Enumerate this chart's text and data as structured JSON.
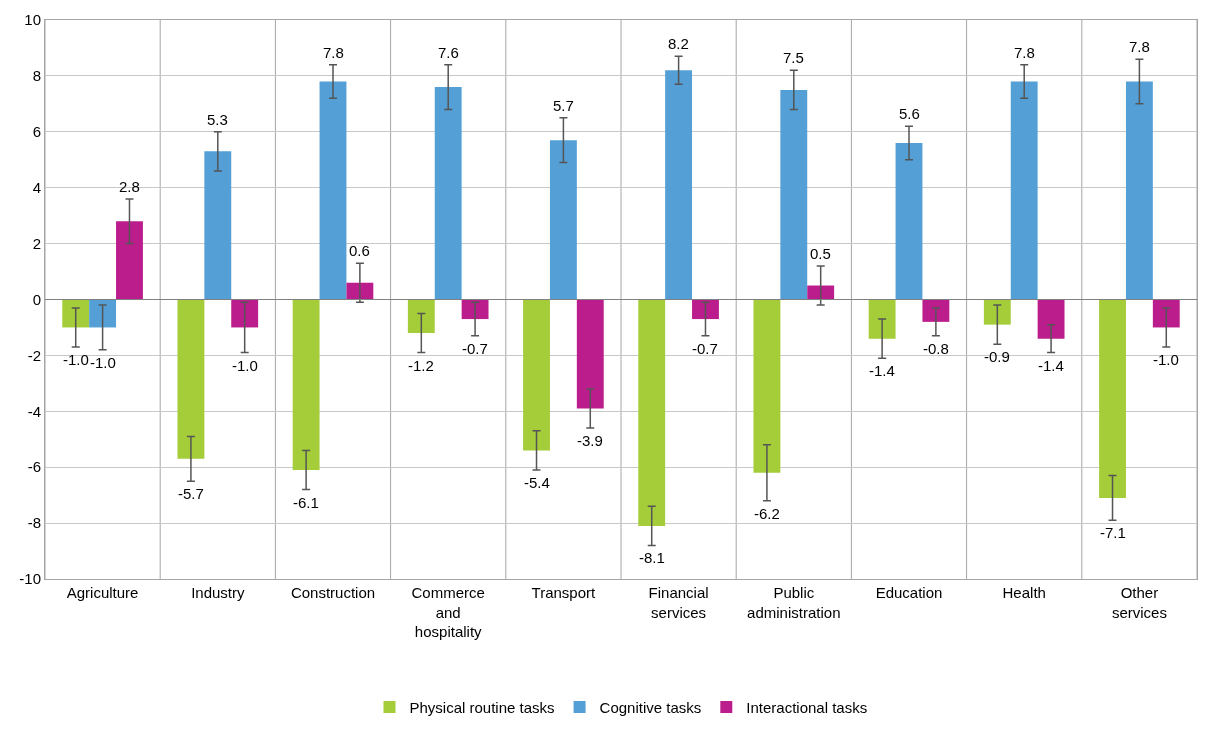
{
  "chart_data": {
    "type": "bar",
    "categories": [
      "Agriculture",
      "Industry",
      "Construction",
      "Commerce and hospitality",
      "Transport",
      "Financial services",
      "Public administration",
      "Education",
      "Health",
      "Other services"
    ],
    "series": [
      {
        "name": "Physical routine tasks",
        "color": "#a5cd39",
        "values": [
          -1.0,
          -5.7,
          -6.1,
          -1.2,
          -5.4,
          -8.1,
          -6.2,
          -1.4,
          -0.9,
          -7.1
        ],
        "value_labels": [
          "-1.0",
          "-5.7",
          "-6.1",
          "-1.2",
          "-5.4",
          "-8.1",
          "-6.2",
          "-1.4",
          "-0.9",
          "-7.1"
        ],
        "errors": [
          0.7,
          0.8,
          0.7,
          0.7,
          0.7,
          0.7,
          1.0,
          0.7,
          0.7,
          0.8
        ]
      },
      {
        "name": "Cognitive tasks",
        "color": "#539fd6",
        "values": [
          -1.0,
          5.3,
          7.8,
          7.6,
          5.7,
          8.2,
          7.5,
          5.6,
          7.8,
          7.8
        ],
        "value_labels": [
          "-1.0",
          "5.3",
          "7.8",
          "7.6",
          "5.7",
          "8.2",
          "7.5",
          "5.6",
          "7.8",
          "7.8"
        ],
        "errors": [
          0.8,
          0.7,
          0.6,
          0.8,
          0.8,
          0.5,
          0.7,
          0.6,
          0.6,
          0.8
        ]
      },
      {
        "name": "Interactional tasks",
        "color": "#bb1e8c",
        "values": [
          2.8,
          -1.0,
          0.6,
          -0.7,
          -3.9,
          -0.7,
          0.5,
          -0.8,
          -1.4,
          -1.0
        ],
        "value_labels": [
          "2.8",
          "-1.0",
          "0.6",
          "-0.7",
          "-3.9",
          "-0.7",
          "0.5",
          "-0.8",
          "-1.4",
          "-1.0"
        ],
        "errors": [
          0.8,
          0.9,
          0.7,
          0.6,
          0.7,
          0.6,
          0.7,
          0.5,
          0.5,
          0.7
        ]
      }
    ],
    "ylim": [
      -10,
      10
    ],
    "yticks": [
      -10,
      -8,
      -6,
      -4,
      -2,
      0,
      2,
      4,
      6,
      8,
      10
    ],
    "grid": true,
    "legend": "bottom"
  }
}
